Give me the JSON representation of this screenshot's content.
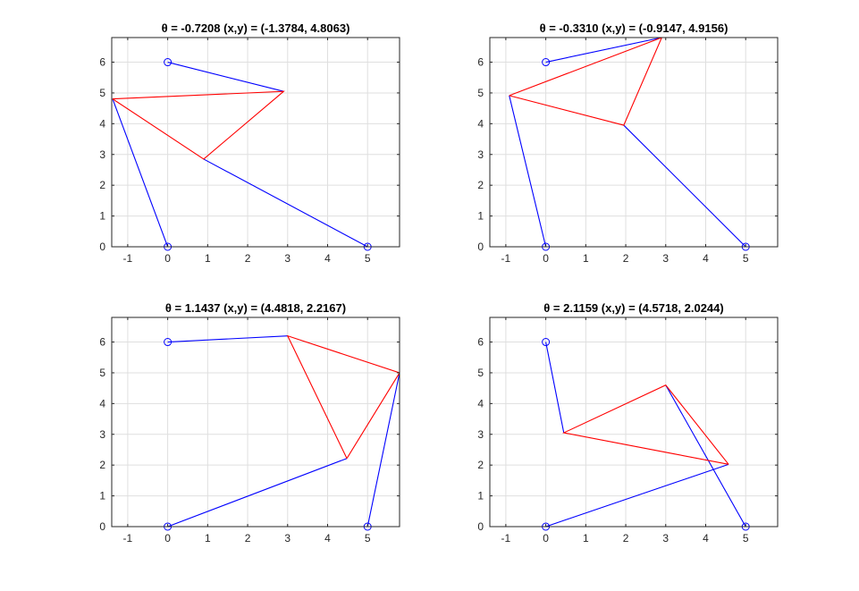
{
  "chart_data": [
    {
      "type": "line",
      "title": "θ = -0.7208  (x,y) = (-1.3784, 4.8063)",
      "theta_value": "-0.7208",
      "xy_value": "(-1.3784, 4.8063)",
      "xlim": [
        -1.4,
        5.8
      ],
      "ylim": [
        0,
        6.8
      ],
      "xticks": [
        -1,
        0,
        1,
        2,
        3,
        4,
        5
      ],
      "yticks": [
        0,
        1,
        2,
        3,
        4,
        5,
        6
      ],
      "grid": true,
      "series": [
        {
          "color": "#0000ff",
          "points": [
            [
              0,
              6
            ],
            [
              2.9,
              5.05
            ]
          ]
        },
        {
          "color": "#0000ff",
          "points": [
            [
              0,
              0
            ],
            [
              -1.3784,
              4.8063
            ]
          ]
        },
        {
          "color": "#0000ff",
          "points": [
            [
              5,
              0
            ],
            [
              0.9,
              2.85
            ]
          ]
        },
        {
          "color": "#ff0000",
          "points": [
            [
              -1.3784,
              4.8063
            ],
            [
              2.9,
              5.05
            ],
            [
              0.9,
              2.85
            ],
            [
              -1.3784,
              4.8063
            ]
          ]
        }
      ],
      "pivots": [
        [
          0,
          6
        ],
        [
          0,
          0
        ],
        [
          5,
          0
        ]
      ]
    },
    {
      "type": "line",
      "title": "θ = -0.3310  (x,y) = (-0.9147, 4.9156)",
      "theta_value": "-0.3310",
      "xy_value": "(-0.9147, 4.9156)",
      "xlim": [
        -1.4,
        5.8
      ],
      "ylim": [
        0,
        6.8
      ],
      "xticks": [
        -1,
        0,
        1,
        2,
        3,
        4,
        5
      ],
      "yticks": [
        0,
        1,
        2,
        3,
        4,
        5,
        6
      ],
      "grid": true,
      "series": [
        {
          "color": "#0000ff",
          "points": [
            [
              0,
              6
            ],
            [
              2.9,
              6.8
            ]
          ]
        },
        {
          "color": "#0000ff",
          "points": [
            [
              0,
              0
            ],
            [
              -0.9147,
              4.9156
            ]
          ]
        },
        {
          "color": "#0000ff",
          "points": [
            [
              5,
              0
            ],
            [
              1.95,
              3.95
            ]
          ]
        },
        {
          "color": "#ff0000",
          "points": [
            [
              -0.9147,
              4.9156
            ],
            [
              2.9,
              6.8
            ],
            [
              1.95,
              3.95
            ],
            [
              -0.9147,
              4.9156
            ]
          ]
        }
      ],
      "pivots": [
        [
          0,
          6
        ],
        [
          0,
          0
        ],
        [
          5,
          0
        ]
      ]
    },
    {
      "type": "line",
      "title": "θ = 1.1437  (x,y) = (4.4818, 2.2167)",
      "theta_value": "1.1437",
      "xy_value": "(4.4818, 2.2167)",
      "xlim": [
        -1.4,
        5.8
      ],
      "ylim": [
        0,
        6.8
      ],
      "xticks": [
        -1,
        0,
        1,
        2,
        3,
        4,
        5
      ],
      "yticks": [
        0,
        1,
        2,
        3,
        4,
        5,
        6
      ],
      "grid": true,
      "series": [
        {
          "color": "#0000ff",
          "points": [
            [
              0,
              6
            ],
            [
              3.0,
              6.2
            ]
          ]
        },
        {
          "color": "#0000ff",
          "points": [
            [
              0,
              0
            ],
            [
              4.4818,
              2.2167
            ]
          ]
        },
        {
          "color": "#0000ff",
          "points": [
            [
              5,
              0
            ],
            [
              5.8,
              5.0
            ]
          ]
        },
        {
          "color": "#ff0000",
          "points": [
            [
              4.4818,
              2.2167
            ],
            [
              3.0,
              6.2
            ],
            [
              5.8,
              5.0
            ],
            [
              4.4818,
              2.2167
            ]
          ]
        }
      ],
      "pivots": [
        [
          0,
          6
        ],
        [
          0,
          0
        ],
        [
          5,
          0
        ]
      ]
    },
    {
      "type": "line",
      "title": "θ = 2.1159  (x,y) = (4.5718, 2.0244)",
      "theta_value": "2.1159",
      "xy_value": "(4.5718, 2.0244)",
      "xlim": [
        -1.4,
        5.8
      ],
      "ylim": [
        0,
        6.8
      ],
      "xticks": [
        -1,
        0,
        1,
        2,
        3,
        4,
        5
      ],
      "yticks": [
        0,
        1,
        2,
        3,
        4,
        5,
        6
      ],
      "grid": true,
      "series": [
        {
          "color": "#0000ff",
          "points": [
            [
              0,
              6
            ],
            [
              0.45,
              3.05
            ]
          ]
        },
        {
          "color": "#0000ff",
          "points": [
            [
              0,
              0
            ],
            [
              4.5718,
              2.0244
            ]
          ]
        },
        {
          "color": "#0000ff",
          "points": [
            [
              5,
              0
            ],
            [
              3.0,
              4.6
            ]
          ]
        },
        {
          "color": "#ff0000",
          "points": [
            [
              4.5718,
              2.0244
            ],
            [
              0.45,
              3.05
            ],
            [
              3.0,
              4.6
            ],
            [
              4.5718,
              2.0244
            ]
          ]
        }
      ],
      "pivots": [
        [
          0,
          6
        ],
        [
          0,
          0
        ],
        [
          5,
          0
        ]
      ]
    }
  ],
  "colors": {
    "axis": "#262626",
    "grid": "#dfdfdf",
    "background": "#ffffff"
  }
}
